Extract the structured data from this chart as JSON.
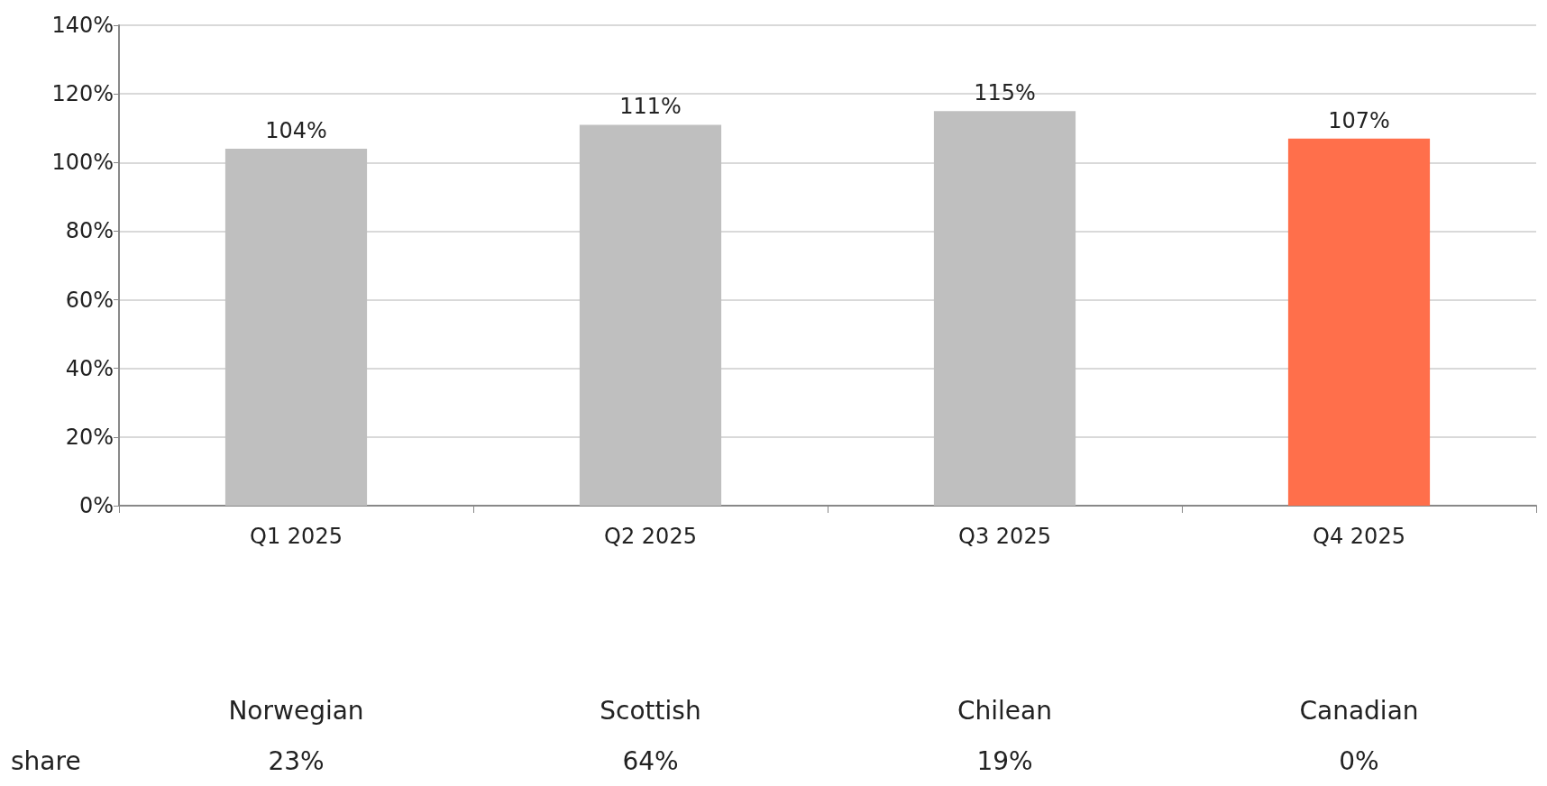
{
  "chart_data": {
    "type": "bar",
    "categories": [
      "Q1 2025",
      "Q2 2025",
      "Q3 2025",
      "Q4 2025"
    ],
    "values": [
      104,
      111,
      115,
      107
    ],
    "colors": [
      "#bfbfbf",
      "#bfbfbf",
      "#bfbfbf",
      "#ff6f4b"
    ],
    "value_labels": [
      "104%",
      "111%",
      "115%",
      "107%"
    ],
    "ylim": [
      0,
      140
    ],
    "yticks": [
      {
        "value": 0,
        "label": "0%"
      },
      {
        "value": 20,
        "label": "20%"
      },
      {
        "value": 40,
        "label": "40%"
      },
      {
        "value": 60,
        "label": "60%"
      },
      {
        "value": 80,
        "label": "80%"
      },
      {
        "value": 100,
        "label": "100%"
      },
      {
        "value": 120,
        "label": "120%"
      },
      {
        "value": 140,
        "label": "140%"
      }
    ],
    "grid": "y",
    "annotations": [
      "Norwegian",
      "Scottish",
      "Chilean",
      "Canadian",
      "share",
      "23%",
      "64%",
      "19%",
      "0%"
    ]
  }
}
